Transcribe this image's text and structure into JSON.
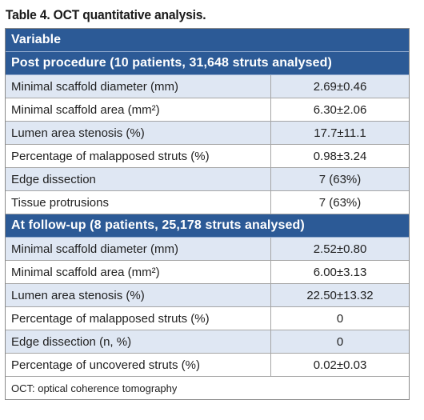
{
  "table": {
    "title": "Table 4. OCT quantitative analysis.",
    "header": "Variable",
    "sections": [
      {
        "heading": "Post procedure (10 patients, 31,648 struts analysed)",
        "rows": [
          {
            "label": "Minimal scaffold diameter (mm)",
            "value": "2.69±0.46"
          },
          {
            "label": "Minimal scaffold area (mm²)",
            "value": "6.30±2.06"
          },
          {
            "label": "Lumen area stenosis (%)",
            "value": "17.7±11.1"
          },
          {
            "label": "Percentage of malapposed struts (%)",
            "value": "0.98±3.24"
          },
          {
            "label": "Edge dissection",
            "value": "7 (63%)"
          },
          {
            "label": "Tissue protrusions",
            "value": "7 (63%)"
          }
        ]
      },
      {
        "heading": "At follow-up (8 patients, 25,178 struts analysed)",
        "rows": [
          {
            "label": "Minimal scaffold diameter (mm)",
            "value": "2.52±0.80"
          },
          {
            "label": "Minimal scaffold area (mm²)",
            "value": "6.00±3.13"
          },
          {
            "label": "Lumen area stenosis (%)",
            "value": "22.50±13.32"
          },
          {
            "label": "Percentage of malapposed struts (%)",
            "value": "0"
          },
          {
            "label": "Edge dissection (n, %)",
            "value": "0"
          },
          {
            "label": "Percentage of uncovered struts (%)",
            "value": "0.02±0.03"
          }
        ]
      }
    ],
    "footnote": "OCT: optical coherence tomography"
  }
}
